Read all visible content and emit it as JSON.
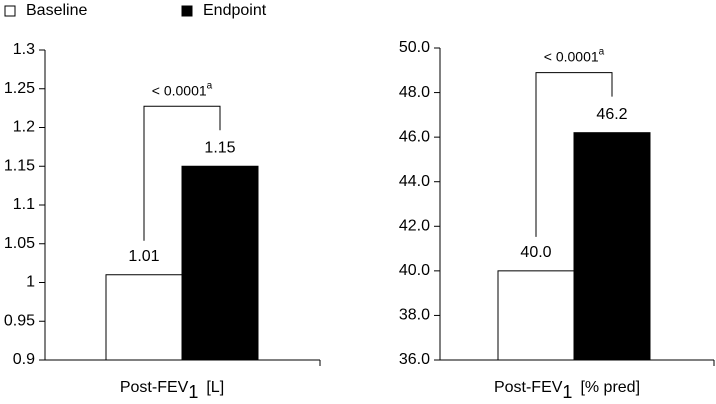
{
  "chart_data": [
    {
      "type": "bar",
      "categories": [
        null
      ],
      "series": [
        {
          "name": "Baseline",
          "color": "#ffffff",
          "values": [
            1.01
          ]
        },
        {
          "name": "Endpoint",
          "color": "#000000",
          "values": [
            1.15
          ]
        }
      ],
      "ylim": [
        0.9,
        1.3
      ],
      "yticks": [
        0.9,
        0.95,
        1,
        1.05,
        1.1,
        1.15,
        1.2,
        1.25,
        1.3
      ],
      "annotation": {
        "text": "< 0.0001",
        "superscript": "a"
      },
      "x_label": {
        "text": "Post-FEV",
        "subscript": "1",
        "suffix": "[L]"
      }
    },
    {
      "type": "bar",
      "categories": [
        null
      ],
      "series": [
        {
          "color": "#ffffff",
          "values": [
            40
          ],
          "value_labels": [
            "40.0"
          ]
        },
        {
          "color": "#000000",
          "values": [
            46.2
          ],
          "value_labels": [
            "46.2"
          ]
        }
      ],
      "ylim": [
        36,
        50
      ],
      "yticks": [
        {
          "value": 36,
          "label": "36.0"
        },
        {
          "value": 38,
          "label": "38.0"
        },
        {
          "value": 40,
          "label": "40.0"
        },
        {
          "value": 42,
          "label": "42.0"
        },
        {
          "value": 44,
          "label": "44.0"
        },
        {
          "value": 46,
          "label": "46.0"
        },
        {
          "value": 48,
          "label": "48.0"
        },
        {
          "value": 50,
          "label": "50.0"
        }
      ],
      "annotation": {
        "text": "< 0.0001",
        "superscript": "a"
      },
      "x_label": {
        "text": "Post-FEV",
        "subscript": "1",
        "suffix": "[% pred]"
      }
    }
  ]
}
